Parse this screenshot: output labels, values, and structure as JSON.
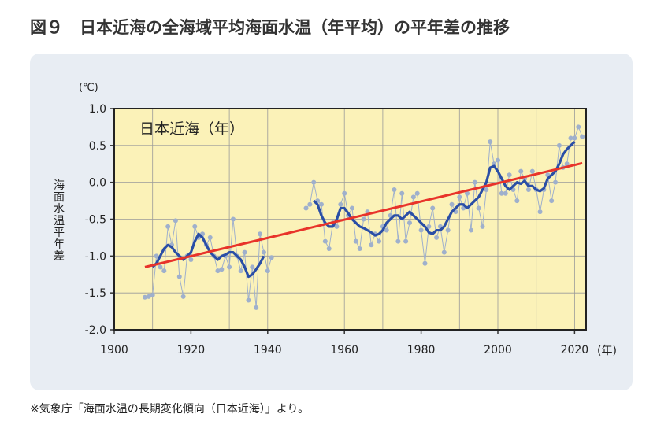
{
  "chart_data": {
    "type": "line",
    "title": "図９　日本近海の全海域平均海面水温（年平均）の平年差の推移",
    "source": "※気象庁「海面水温の長期変化傾向（日本近海）」より。",
    "y_unit": "(℃)",
    "ylabel": "海面水温平年差",
    "x_unit": "(年)",
    "annotation": "日本近海（年）",
    "xlim": [
      1900,
      2023
    ],
    "ylim": [
      -2.0,
      1.0
    ],
    "xticks": [
      1900,
      1920,
      1940,
      1960,
      1980,
      2000,
      2020
    ],
    "yticks": [
      {
        "value": 1.0,
        "label": "1.0"
      },
      {
        "value": 0.5,
        "label": "0.5"
      },
      {
        "value": 0.0,
        "label": "0.0"
      },
      {
        "value": -0.5,
        "label": "-0.5"
      },
      {
        "value": -1.0,
        "label": "-1.0"
      },
      {
        "value": -1.5,
        "label": "-1.5"
      },
      {
        "value": -2.0,
        "label": "-2.0"
      }
    ],
    "grid": true,
    "x": [
      1908,
      1909,
      1910,
      1911,
      1912,
      1913,
      1914,
      1915,
      1916,
      1917,
      1918,
      1919,
      1920,
      1921,
      1922,
      1923,
      1924,
      1925,
      1926,
      1927,
      1928,
      1929,
      1930,
      1931,
      1932,
      1933,
      1934,
      1935,
      1936,
      1937,
      1938,
      1939,
      1940,
      1941,
      1942,
      1943,
      1944,
      1945,
      1946,
      1947,
      1948,
      1949,
      1950,
      1951,
      1952,
      1953,
      1954,
      1955,
      1956,
      1957,
      1958,
      1959,
      1960,
      1961,
      1962,
      1963,
      1964,
      1965,
      1966,
      1967,
      1968,
      1969,
      1970,
      1971,
      1972,
      1973,
      1974,
      1975,
      1976,
      1977,
      1978,
      1979,
      1980,
      1981,
      1982,
      1983,
      1984,
      1985,
      1986,
      1987,
      1988,
      1989,
      1990,
      1991,
      1992,
      1993,
      1994,
      1995,
      1996,
      1997,
      1998,
      1999,
      2000,
      2001,
      2002,
      2003,
      2004,
      2005,
      2006,
      2007,
      2008,
      2009,
      2010,
      2011,
      2012,
      2013,
      2014,
      2015,
      2016,
      2017,
      2018,
      2019,
      2020,
      2021,
      2022
    ],
    "series": [
      {
        "color": "#9fb0cc",
        "marker": true,
        "values": [
          -1.56,
          -1.55,
          -1.53,
          -1.0,
          -1.15,
          -1.2,
          -0.6,
          -0.85,
          -0.52,
          -1.28,
          -1.55,
          -1.0,
          -1.05,
          -0.6,
          -0.75,
          -0.7,
          -0.85,
          -0.75,
          -1.0,
          -1.2,
          -1.18,
          -1.0,
          -1.15,
          -0.5,
          -1.0,
          -1.2,
          -0.95,
          -1.6,
          -1.15,
          -1.7,
          -0.7,
          -0.95,
          -1.2,
          -1.02,
          null,
          null,
          null,
          null,
          null,
          null,
          null,
          null,
          -0.35,
          -0.3,
          0.0,
          -0.25,
          -0.3,
          -0.8,
          -0.9,
          -0.55,
          -0.6,
          -0.3,
          -0.15,
          -0.45,
          -0.35,
          -0.8,
          -0.9,
          -0.5,
          -0.4,
          -0.85,
          -0.7,
          -0.8,
          -0.6,
          -0.65,
          -0.45,
          -0.1,
          -0.8,
          -0.15,
          -0.8,
          -0.55,
          -0.2,
          -0.15,
          -0.65,
          -1.1,
          -0.6,
          -0.35,
          -0.75,
          -0.6,
          -0.95,
          -0.65,
          -0.3,
          -0.4,
          -0.2,
          -0.35,
          -0.15,
          -0.65,
          0.0,
          -0.35,
          -0.6,
          -0.1,
          0.55,
          0.25,
          0.3,
          -0.15,
          -0.15,
          0.1,
          -0.1,
          -0.25,
          0.15,
          0.05,
          -0.1,
          0.15,
          -0.1,
          -0.4,
          -0.1,
          0.1,
          -0.25,
          0.0,
          0.5,
          0.2,
          0.25,
          0.6,
          0.6,
          0.75,
          0.62
        ]
      },
      {
        "color": "#2a4ea6",
        "marker": false,
        "values": [
          null,
          null,
          -1.15,
          -1.1,
          -1.0,
          -0.9,
          -0.85,
          -0.88,
          -0.95,
          -1.0,
          -1.05,
          -1.0,
          -0.95,
          -0.8,
          -0.7,
          -0.75,
          -0.85,
          -0.95,
          -1.0,
          -1.05,
          -1.0,
          -0.98,
          -0.95,
          -0.95,
          -1.0,
          -1.05,
          -1.15,
          -1.28,
          -1.25,
          -1.18,
          -1.1,
          -1.0,
          null,
          null,
          null,
          null,
          null,
          null,
          null,
          null,
          null,
          null,
          null,
          null,
          -0.25,
          -0.3,
          -0.45,
          -0.55,
          -0.6,
          -0.6,
          -0.5,
          -0.35,
          -0.35,
          -0.42,
          -0.5,
          -0.55,
          -0.6,
          -0.62,
          -0.65,
          -0.68,
          -0.72,
          -0.7,
          -0.65,
          -0.55,
          -0.5,
          -0.45,
          -0.45,
          -0.5,
          -0.45,
          -0.4,
          -0.45,
          -0.5,
          -0.55,
          -0.6,
          -0.68,
          -0.7,
          -0.65,
          -0.65,
          -0.6,
          -0.5,
          -0.4,
          -0.35,
          -0.3,
          -0.3,
          -0.35,
          -0.3,
          -0.25,
          -0.2,
          -0.1,
          0.0,
          0.2,
          0.22,
          0.15,
          0.05,
          -0.05,
          -0.1,
          -0.05,
          0.0,
          -0.02,
          0.02,
          -0.05,
          -0.05,
          -0.1,
          -0.12,
          -0.08,
          0.05,
          0.1,
          0.15,
          0.25,
          0.38,
          0.45,
          0.5,
          0.55,
          null,
          null
        ]
      },
      {
        "color": "#e8332a",
        "marker": false,
        "x": [
          1908,
          2022
        ],
        "values": [
          -1.15,
          0.26
        ]
      }
    ]
  }
}
